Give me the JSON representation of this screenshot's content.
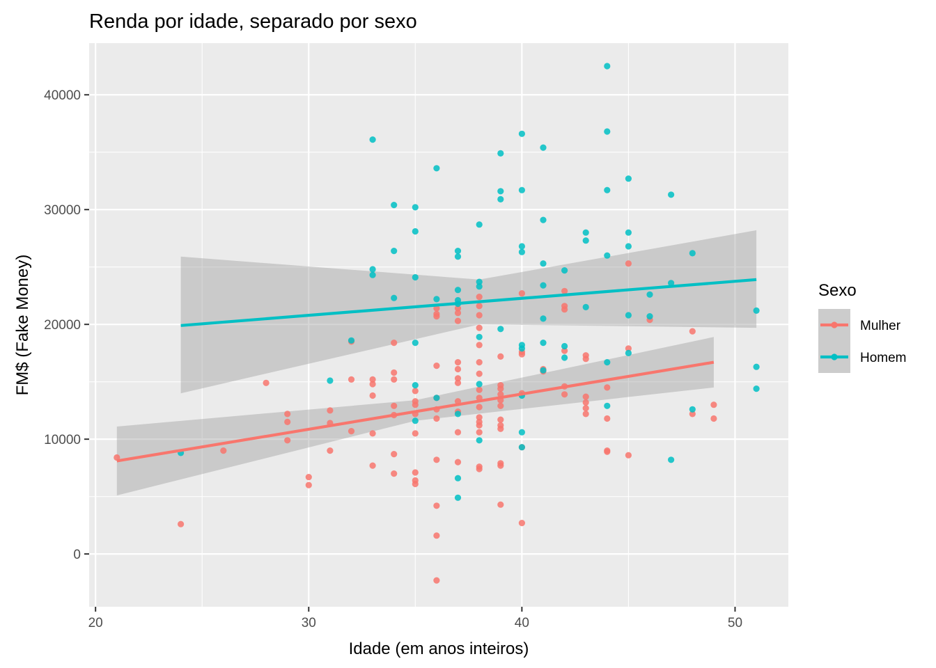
{
  "chart_data": {
    "type": "scatter",
    "title": "Renda por idade, separado por sexo",
    "xlabel": "Idade (em anos inteiros)",
    "ylabel": "FM$ (Fake Money)",
    "xlim": [
      19.7,
      52.5
    ],
    "ylim": [
      -4600,
      44500
    ],
    "x_ticks": [
      20,
      30,
      40,
      50
    ],
    "x_tick_labels": [
      "20",
      "30",
      "40",
      "50"
    ],
    "y_ticks": [
      0,
      10000,
      20000,
      30000,
      40000
    ],
    "y_tick_labels": [
      "0",
      "10000",
      "20000",
      "30000",
      "40000"
    ],
    "grid": true,
    "legend": {
      "title": "Sexo",
      "position": "right"
    },
    "series": [
      {
        "name": "Mulher",
        "color": "#F8766D",
        "points": [
          [
            21,
            8400
          ],
          [
            24,
            2600
          ],
          [
            26,
            9000
          ],
          [
            28,
            14900
          ],
          [
            29,
            12200
          ],
          [
            29,
            11500
          ],
          [
            29,
            9900
          ],
          [
            30,
            6700
          ],
          [
            30,
            6000
          ],
          [
            31,
            12500
          ],
          [
            31,
            11400
          ],
          [
            31,
            9000
          ],
          [
            32,
            15200
          ],
          [
            32,
            10700
          ],
          [
            32,
            18500
          ],
          [
            33,
            15200
          ],
          [
            33,
            14800
          ],
          [
            33,
            13800
          ],
          [
            33,
            10500
          ],
          [
            33,
            7700
          ],
          [
            34,
            18400
          ],
          [
            34,
            15800
          ],
          [
            34,
            15200
          ],
          [
            34,
            12900
          ],
          [
            34,
            12100
          ],
          [
            34,
            8700
          ],
          [
            34,
            7000
          ],
          [
            35,
            14200
          ],
          [
            35,
            13300
          ],
          [
            35,
            13000
          ],
          [
            35,
            12200
          ],
          [
            35,
            10500
          ],
          [
            35,
            7100
          ],
          [
            35,
            6400
          ],
          [
            35,
            6100
          ],
          [
            36,
            21400
          ],
          [
            36,
            20900
          ],
          [
            36,
            20700
          ],
          [
            36,
            16400
          ],
          [
            36,
            13600
          ],
          [
            36,
            12600
          ],
          [
            36,
            11800
          ],
          [
            36,
            8200
          ],
          [
            36,
            4200
          ],
          [
            36,
            1600
          ],
          [
            36,
            -2300
          ],
          [
            37,
            21400
          ],
          [
            37,
            21000
          ],
          [
            37,
            20300
          ],
          [
            37,
            16700
          ],
          [
            37,
            16100
          ],
          [
            37,
            15300
          ],
          [
            37,
            14900
          ],
          [
            37,
            13300
          ],
          [
            37,
            12400
          ],
          [
            37,
            10600
          ],
          [
            37,
            8000
          ],
          [
            38,
            22400
          ],
          [
            38,
            21600
          ],
          [
            38,
            20800
          ],
          [
            38,
            19700
          ],
          [
            38,
            18200
          ],
          [
            38,
            16700
          ],
          [
            38,
            15700
          ],
          [
            38,
            14300
          ],
          [
            38,
            13600
          ],
          [
            38,
            12800
          ],
          [
            38,
            11900
          ],
          [
            38,
            11500
          ],
          [
            38,
            11200
          ],
          [
            38,
            10600
          ],
          [
            38,
            7600
          ],
          [
            38,
            7400
          ],
          [
            39,
            17200
          ],
          [
            39,
            14700
          ],
          [
            39,
            14400
          ],
          [
            39,
            13900
          ],
          [
            39,
            13400
          ],
          [
            39,
            12900
          ],
          [
            39,
            11700
          ],
          [
            39,
            11200
          ],
          [
            39,
            10900
          ],
          [
            39,
            7900
          ],
          [
            39,
            7700
          ],
          [
            39,
            4300
          ],
          [
            40,
            22700
          ],
          [
            40,
            17600
          ],
          [
            40,
            17400
          ],
          [
            40,
            14000
          ],
          [
            40,
            9300
          ],
          [
            40,
            2700
          ],
          [
            41,
            16100
          ],
          [
            41,
            15900
          ],
          [
            42,
            22900
          ],
          [
            42,
            21600
          ],
          [
            42,
            21300
          ],
          [
            42,
            17700
          ],
          [
            42,
            14600
          ],
          [
            42,
            13900
          ],
          [
            43,
            17300
          ],
          [
            43,
            17000
          ],
          [
            43,
            13700
          ],
          [
            43,
            13200
          ],
          [
            43,
            12700
          ],
          [
            43,
            12200
          ],
          [
            44,
            14500
          ],
          [
            44,
            11800
          ],
          [
            44,
            9000
          ],
          [
            44,
            8900
          ],
          [
            45,
            25300
          ],
          [
            45,
            17900
          ],
          [
            45,
            8600
          ],
          [
            46,
            20400
          ],
          [
            48,
            19400
          ],
          [
            48,
            12200
          ],
          [
            49,
            13000
          ],
          [
            49,
            11800
          ]
        ],
        "trend": {
          "x": [
            21,
            49
          ],
          "y": [
            8100,
            16700
          ]
        },
        "band": {
          "x": [
            21,
            35,
            49
          ],
          "lower": [
            5100,
            11600,
            14500
          ],
          "upper": [
            11100,
            13400,
            18900
          ]
        }
      },
      {
        "name": "Homem",
        "color": "#00BFC4",
        "points": [
          [
            24,
            8800
          ],
          [
            31,
            15100
          ],
          [
            32,
            18600
          ],
          [
            33,
            36100
          ],
          [
            33,
            24800
          ],
          [
            33,
            24300
          ],
          [
            34,
            30400
          ],
          [
            34,
            26400
          ],
          [
            34,
            22300
          ],
          [
            35,
            30200
          ],
          [
            35,
            28100
          ],
          [
            35,
            24100
          ],
          [
            35,
            18400
          ],
          [
            35,
            14700
          ],
          [
            35,
            11600
          ],
          [
            36,
            33600
          ],
          [
            36,
            22200
          ],
          [
            36,
            13600
          ],
          [
            37,
            26400
          ],
          [
            37,
            25900
          ],
          [
            37,
            23000
          ],
          [
            37,
            22100
          ],
          [
            37,
            21800
          ],
          [
            37,
            12200
          ],
          [
            37,
            6600
          ],
          [
            37,
            4900
          ],
          [
            38,
            28700
          ],
          [
            38,
            23700
          ],
          [
            38,
            23300
          ],
          [
            38,
            18900
          ],
          [
            38,
            14800
          ],
          [
            38,
            9900
          ],
          [
            39,
            34900
          ],
          [
            39,
            31600
          ],
          [
            39,
            30900
          ],
          [
            39,
            19600
          ],
          [
            40,
            36600
          ],
          [
            40,
            31700
          ],
          [
            40,
            26800
          ],
          [
            40,
            26300
          ],
          [
            40,
            18200
          ],
          [
            40,
            17900
          ],
          [
            40,
            13800
          ],
          [
            40,
            10600
          ],
          [
            40,
            9300
          ],
          [
            41,
            35400
          ],
          [
            41,
            29100
          ],
          [
            41,
            25300
          ],
          [
            41,
            23400
          ],
          [
            41,
            20500
          ],
          [
            41,
            18400
          ],
          [
            41,
            16000
          ],
          [
            42,
            24700
          ],
          [
            42,
            18100
          ],
          [
            42,
            17100
          ],
          [
            43,
            28000
          ],
          [
            43,
            27300
          ],
          [
            43,
            21500
          ],
          [
            44,
            42500
          ],
          [
            44,
            36800
          ],
          [
            44,
            31700
          ],
          [
            44,
            26000
          ],
          [
            44,
            16700
          ],
          [
            44,
            12900
          ],
          [
            45,
            32700
          ],
          [
            45,
            28000
          ],
          [
            45,
            26800
          ],
          [
            45,
            20800
          ],
          [
            45,
            17500
          ],
          [
            46,
            22600
          ],
          [
            46,
            20700
          ],
          [
            47,
            31300
          ],
          [
            47,
            23600
          ],
          [
            47,
            8200
          ],
          [
            48,
            26200
          ],
          [
            48,
            12600
          ],
          [
            51,
            21200
          ],
          [
            51,
            16300
          ],
          [
            51,
            14400
          ]
        ],
        "trend": {
          "x": [
            24,
            51
          ],
          "y": [
            19900,
            23900
          ]
        },
        "band": {
          "x": [
            24,
            38,
            51
          ],
          "lower": [
            14000,
            20000,
            19700
          ],
          "upper": [
            25900,
            23900,
            28200
          ]
        }
      }
    ]
  }
}
